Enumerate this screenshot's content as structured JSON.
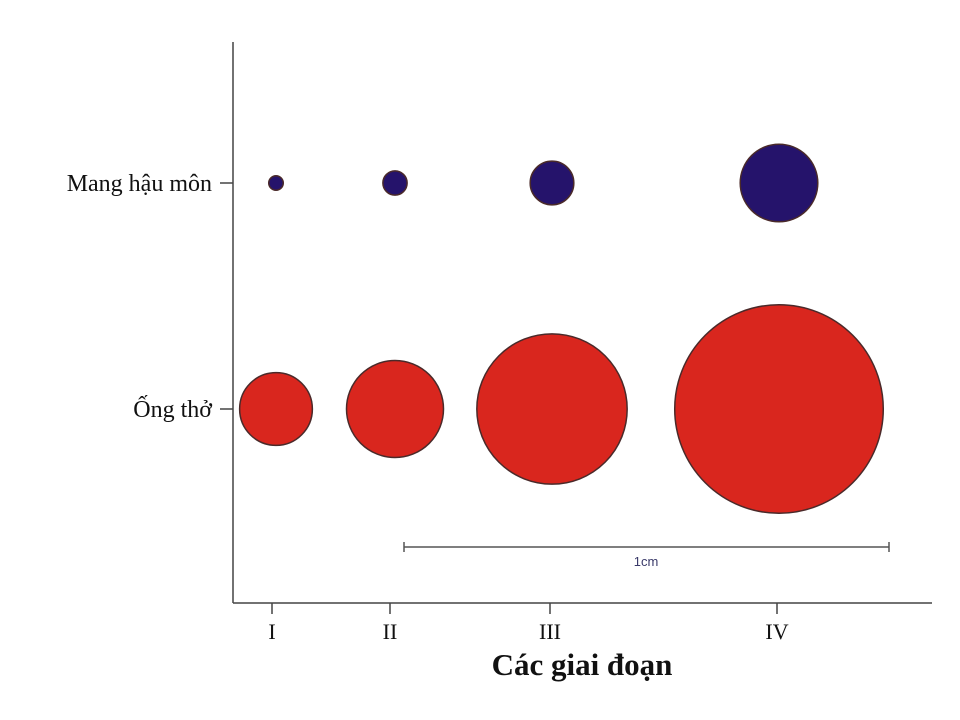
{
  "chart_data": {
    "type": "scatter",
    "xlabel": "Các giai đoạn",
    "ylabel": "",
    "categories": [
      "I",
      "II",
      "III",
      "IV"
    ],
    "rows": [
      "Mang hậu môn",
      "Ống thở"
    ],
    "scale_bar_label": "1cm",
    "series": [
      {
        "name": "Mang hậu môn",
        "color": "#25136b",
        "diameter_cm": [
          0.03,
          0.05,
          0.09,
          0.16
        ]
      },
      {
        "name": "Ống thở",
        "color": "#d9261e",
        "diameter_cm": [
          0.15,
          0.2,
          0.31,
          0.43
        ]
      }
    ],
    "grid": false
  }
}
